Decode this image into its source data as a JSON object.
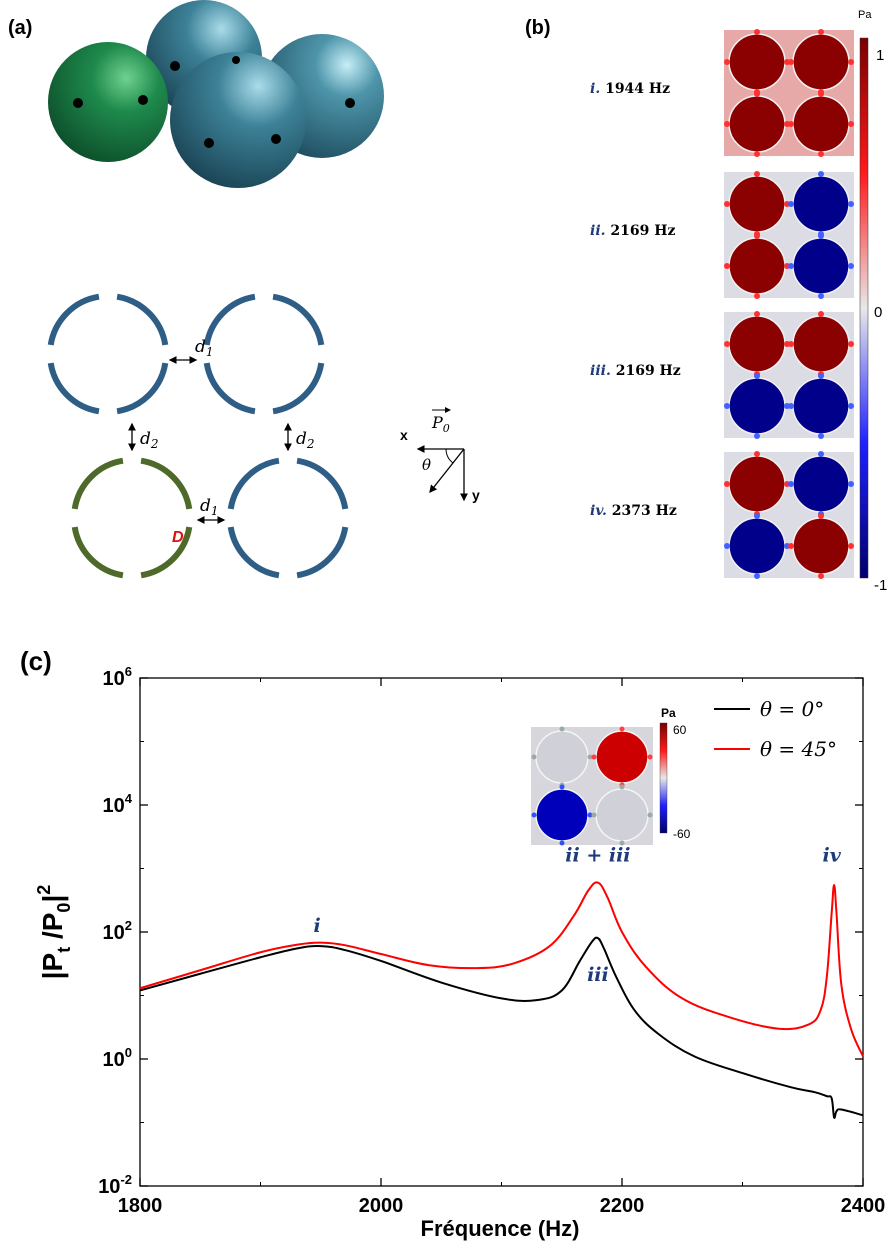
{
  "panels": {
    "a": "(a)",
    "b": "(b)",
    "c": "(c)"
  },
  "panel_a": {
    "labels": {
      "d1_top": "d",
      "d1_top_sub": "1",
      "d1_bottom": "d",
      "d1_bottom_sub": "1",
      "d2_left": "d",
      "d2_left_sub": "2",
      "d2_right": "d",
      "d2_right_sub": "2",
      "D": "D"
    },
    "axes": {
      "x": "x",
      "y": "y",
      "theta": "θ",
      "P": "P",
      "P_sub": "0"
    },
    "colors": {
      "ring_blue": "#2e5d86",
      "ring_green": "#4e6a2a",
      "sphere_green": "#1e7a44",
      "sphere_teal": "#3e7f94"
    }
  },
  "panel_b": {
    "unit": "Pa",
    "scale_max": "1",
    "scale_mid": "0",
    "scale_min": "-1",
    "modes": [
      {
        "num": "i.",
        "freq": "1944 Hz",
        "signs": [
          1,
          1,
          1,
          1
        ]
      },
      {
        "num": "ii.",
        "freq": "2169 Hz",
        "signs": [
          1,
          -1,
          1,
          -1
        ]
      },
      {
        "num": "iii.",
        "freq": "2169 Hz",
        "signs": [
          1,
          1,
          -1,
          -1
        ]
      },
      {
        "num": "iv.",
        "freq": "2373 Hz",
        "signs": [
          1,
          -1,
          -1,
          1
        ]
      }
    ],
    "colors": {
      "positive": "#8b0000",
      "negative": "#00008b",
      "background_light": "#dcdce4"
    }
  },
  "chart_data": {
    "type": "line",
    "xlabel": "Fréquence (Hz)",
    "ylabel_main": "|P",
    "ylabel_sub_t": "t",
    "ylabel_mid": " /P",
    "ylabel_sub_0": "0",
    "ylabel_end": "|",
    "ylabel_sup": "2",
    "xlim": [
      1800,
      2400
    ],
    "ylim": [
      0.01,
      1000000
    ],
    "y_scale": "log",
    "x_ticks": [
      "1800",
      "2000",
      "2200",
      "2400"
    ],
    "y_ticks": [
      {
        "base": "10",
        "exp": "-2"
      },
      {
        "base": "10",
        "exp": "0"
      },
      {
        "base": "10",
        "exp": "2"
      },
      {
        "base": "10",
        "exp": "4"
      },
      {
        "base": "10",
        "exp": "6"
      }
    ],
    "legend_position": "top-right",
    "series": [
      {
        "name": "θ = 0°",
        "color": "#000000",
        "x": [
          1800,
          1850,
          1900,
          1930,
          1950,
          1970,
          2000,
          2050,
          2100,
          2130,
          2150,
          2165,
          2175,
          2180,
          2185,
          2195,
          2210,
          2230,
          2260,
          2300,
          2340,
          2360,
          2370,
          2374,
          2376,
          2378,
          2382,
          2400
        ],
        "y": [
          12,
          22,
          40,
          55,
          60,
          52,
          35,
          16,
          9,
          8.5,
          12,
          35,
          70,
          80,
          55,
          20,
          6,
          2.5,
          1.1,
          0.6,
          0.36,
          0.3,
          0.26,
          0.24,
          0.12,
          0.15,
          0.16,
          0.13
        ]
      },
      {
        "name": "θ = 45°",
        "color": "#ff0000",
        "x": [
          1800,
          1850,
          1900,
          1930,
          1950,
          1970,
          2000,
          2040,
          2080,
          2110,
          2140,
          2160,
          2172,
          2180,
          2188,
          2200,
          2220,
          2250,
          2290,
          2330,
          2355,
          2365,
          2370,
          2374,
          2376,
          2378,
          2382,
          2390,
          2400
        ],
        "y": [
          13,
          25,
          48,
          63,
          68,
          62,
          45,
          30,
          27,
          32,
          60,
          180,
          450,
          600,
          350,
          100,
          28,
          9,
          4.5,
          3.0,
          3.5,
          6,
          20,
          200,
          550,
          200,
          15,
          3,
          1.1
        ]
      }
    ],
    "annotations": [
      {
        "text": "i",
        "x": 1947,
        "y": 100,
        "color": "#1f3a7a"
      },
      {
        "text": "ii + iii",
        "x": 2180,
        "y": 1300,
        "color": "#1f3a7a"
      },
      {
        "text": "iii",
        "x": 2180,
        "y": 17,
        "color": "#1f3a7a"
      },
      {
        "text": "iv",
        "x": 2374,
        "y": 1300,
        "color": "#1f3a7a"
      }
    ],
    "inset": {
      "unit": "Pa",
      "scale_max": "60",
      "scale_min": "-60",
      "signs": [
        0,
        1,
        -1,
        0
      ]
    }
  }
}
